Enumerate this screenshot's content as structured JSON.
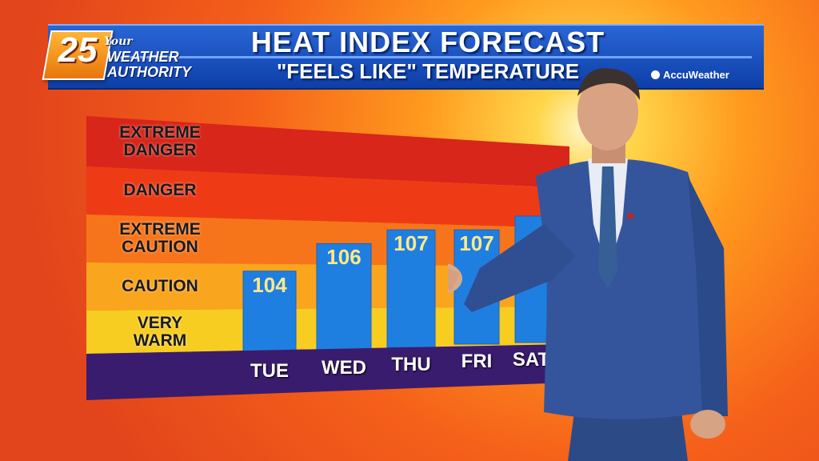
{
  "header": {
    "title": "HEAT INDEX FORECAST",
    "subtitle": "\"FEELS LIKE\" TEMPERATURE"
  },
  "logo": {
    "number": "25",
    "your": "Your",
    "line1": "WEATHER",
    "line2": "AUTHORITY"
  },
  "partner": {
    "label": "AccuWeather"
  },
  "colors": {
    "header_blue": "#1a4fc0",
    "bar_blue": "#1f7fe0",
    "value_text": "#ffe98a",
    "band_extreme_danger": "#d8261a",
    "band_danger": "#ee3b16",
    "band_extreme_caution": "#f7751a",
    "band_caution": "#f9a51e",
    "band_very_warm": "#f7cd22",
    "axis_band": "#3a1c6e"
  },
  "chart_data": {
    "type": "bar",
    "title": "HEAT INDEX FORECAST",
    "subtitle": "\"FEELS LIKE\" TEMPERATURE",
    "categories": [
      "TUE",
      "WED",
      "THU",
      "FRI",
      "SAT"
    ],
    "values": [
      104,
      106,
      107,
      107,
      null
    ],
    "value_labels": [
      "104",
      "106",
      "107",
      "107",
      ""
    ],
    "bands": [
      {
        "label": "EXTREME DANGER",
        "lines": [
          "EXTREME",
          "DANGER"
        ]
      },
      {
        "label": "DANGER",
        "lines": [
          "DANGER"
        ]
      },
      {
        "label": "EXTREME CAUTION",
        "lines": [
          "EXTREME",
          "CAUTION"
        ]
      },
      {
        "label": "CAUTION",
        "lines": [
          "CAUTION"
        ]
      },
      {
        "label": "VERY WARM",
        "lines": [
          "VERY",
          "WARM"
        ]
      }
    ]
  }
}
